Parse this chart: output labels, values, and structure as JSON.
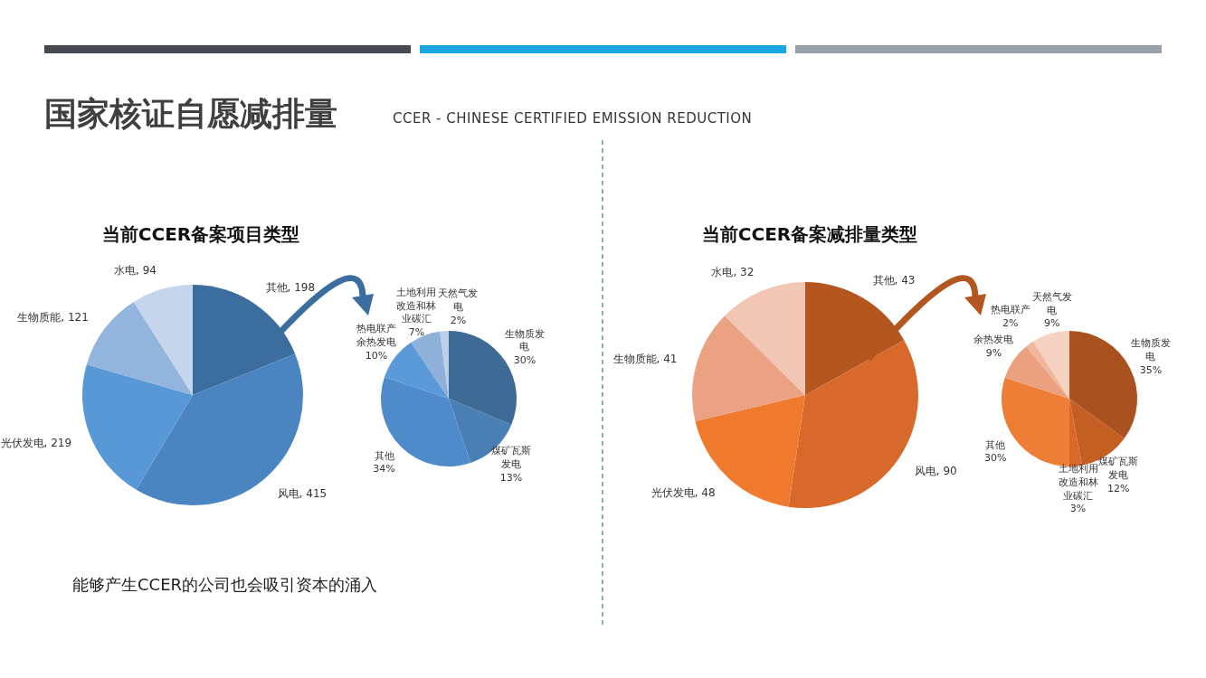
{
  "chart_data": [
    {
      "type": "pie",
      "title": "当前CCER备案项目类型",
      "annotations": [
        "国家核证自愿减排量",
        "CCER - CHINESE CERTIFIED EMISSION REDUCTION",
        "能够产生CCER的公司也会吸引资本的涌入"
      ],
      "categories": [
        "其他",
        "风电",
        "光伏发电",
        "生物质能",
        "水电"
      ],
      "values": [
        198,
        415,
        219,
        121,
        94
      ],
      "colors": [
        "#3c6d9f",
        "#4a85c2",
        "#5898d6",
        "#93b4dd",
        "#c5d6ec"
      ],
      "value_labels": [
        ", 198",
        ", 415",
        ", 219",
        ", 121",
        ", 94"
      ]
    },
    {
      "type": "pie",
      "categories": [
        "生物质发电",
        "煤矿瓦斯发电",
        "其他",
        "热电联产余热发电",
        "土地利用改造和林业碳汇",
        "天然气发电"
      ],
      "values": [
        30,
        13,
        34,
        10,
        7,
        2
      ],
      "value_labels": [
        "30%",
        "13%",
        "34%",
        "10%",
        "7%",
        "2%"
      ],
      "colors": [
        "#3e6b96",
        "#4a7fb6",
        "#4f8bca",
        "#5a9ad8",
        "#8fb0d9",
        "#bccfe9"
      ]
    },
    {
      "type": "pie",
      "title": "当前CCER备案减排量类型",
      "categories": [
        "其他",
        "风电",
        "光伏发电",
        "生物质能",
        "水电"
      ],
      "values": [
        43,
        90,
        48,
        41,
        32
      ],
      "colors": [
        "#b3561f",
        "#d8692a",
        "#ef7a2e",
        "#eba283",
        "#f2c6b4"
      ],
      "value_labels": [
        ", 43",
        ", 90",
        ", 48",
        ", 41",
        ", 32"
      ]
    },
    {
      "type": "pie",
      "categories": [
        "生物质发电",
        "煤矿瓦斯发电",
        "土地利用改造和林业碳汇",
        "其他",
        "余热发电",
        "热电联产",
        "天然气发电"
      ],
      "values": [
        35,
        12,
        3,
        30,
        9,
        2,
        9
      ],
      "value_labels": [
        "35%",
        "12%",
        "3%",
        "30%",
        "9%",
        "2%",
        "9%"
      ],
      "colors": [
        "#a9521f",
        "#c45e22",
        "#d9692a",
        "#ee7d35",
        "#eba07f",
        "#f0b59b",
        "#f5d1c1"
      ]
    }
  ]
}
